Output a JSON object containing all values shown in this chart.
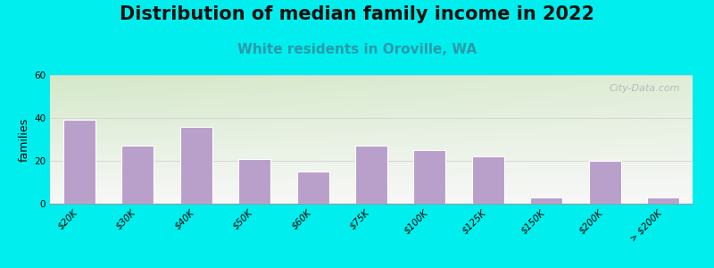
{
  "title": "Distribution of median family income in 2022",
  "subtitle": "White residents in Oroville, WA",
  "ylabel": "families",
  "categories": [
    "$20K",
    "$30K",
    "$40K",
    "$50K",
    "$60K",
    "$75K",
    "$100K",
    "$125K",
    "$150K",
    "$200K",
    "> $200K"
  ],
  "values": [
    39,
    27,
    36,
    21,
    15,
    27,
    25,
    22,
    3,
    20,
    3
  ],
  "bar_color": "#b8a0cb",
  "background_outer": "#00EEEE",
  "background_inner_top_left": "#d4e8c8",
  "background_inner_bottom_right": "#f8f8f8",
  "grid_color": "#cccccc",
  "ylim": [
    0,
    60
  ],
  "yticks": [
    0,
    20,
    40,
    60
  ],
  "title_fontsize": 15,
  "subtitle_fontsize": 11,
  "subtitle_color": "#2a9aaa",
  "watermark": "City-Data.com",
  "ylabel_fontsize": 9,
  "tick_label_fontsize": 7.5,
  "bar_edge_color": "#ffffff",
  "bar_linewidth": 0.8,
  "bar_width": 0.55
}
